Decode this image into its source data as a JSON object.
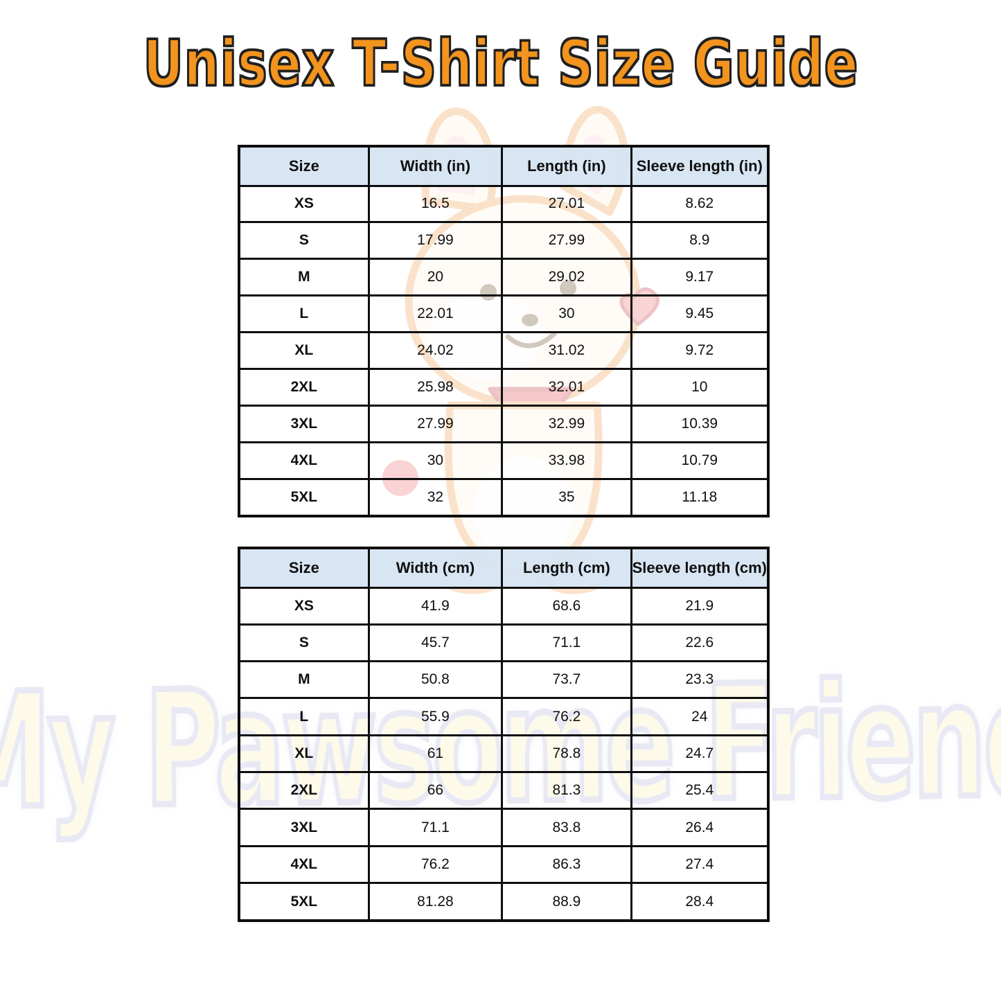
{
  "title": "Unisex T-Shirt Size Guide",
  "watermark": "My Pawsome Friend",
  "colors": {
    "title_orange": "#f2941e",
    "title_outline": "#202020",
    "table_border": "#0e0e0e",
    "header_blue": "#d6e4f1",
    "watermark_fill": "#fcf4cf",
    "watermark_outline": "#c9cde6",
    "background": "#ffffff"
  },
  "mascot": {
    "name": "pawsome-dog-mascot"
  },
  "tables": [
    {
      "name": "inches",
      "columns": [
        "Size",
        "Width (in)",
        "Length (in)",
        "Sleeve length (in)"
      ],
      "rows": [
        [
          "XS",
          "16.5",
          "27.01",
          "8.62"
        ],
        [
          "S",
          "17.99",
          "27.99",
          "8.9"
        ],
        [
          "M",
          "20",
          "29.02",
          "9.17"
        ],
        [
          "L",
          "22.01",
          "30",
          "9.45"
        ],
        [
          "XL",
          "24.02",
          "31.02",
          "9.72"
        ],
        [
          "2XL",
          "25.98",
          "32.01",
          "10"
        ],
        [
          "3XL",
          "27.99",
          "32.99",
          "10.39"
        ],
        [
          "4XL",
          "30",
          "33.98",
          "10.79"
        ],
        [
          "5XL",
          "32",
          "35",
          "11.18"
        ]
      ]
    },
    {
      "name": "centimeters",
      "columns": [
        "Size",
        "Width (cm)",
        "Length (cm)",
        "Sleeve length (cm)"
      ],
      "rows": [
        [
          "XS",
          "41.9",
          "68.6",
          "21.9"
        ],
        [
          "S",
          "45.7",
          "71.1",
          "22.6"
        ],
        [
          "M",
          "50.8",
          "73.7",
          "23.3"
        ],
        [
          "L",
          "55.9",
          "76.2",
          "24"
        ],
        [
          "XL",
          "61",
          "78.8",
          "24.7"
        ],
        [
          "2XL",
          "66",
          "81.3",
          "25.4"
        ],
        [
          "3XL",
          "71.1",
          "83.8",
          "26.4"
        ],
        [
          "4XL",
          "76.2",
          "86.3",
          "27.4"
        ],
        [
          "5XL",
          "81.28",
          "88.9",
          "28.4"
        ]
      ]
    }
  ]
}
